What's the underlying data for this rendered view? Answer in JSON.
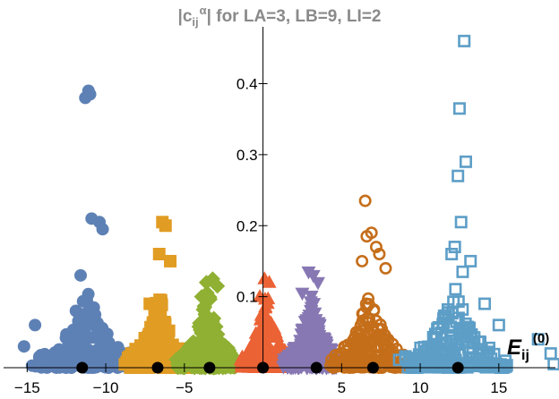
{
  "chart_data": {
    "type": "scatter",
    "title": {
      "prefix": "|c",
      "sub": "ij",
      "sup": "α",
      "suffix": "| for LA=3, LB=9, LI=2"
    },
    "xlabel": {
      "main": "E",
      "sub": "ij",
      "sup": "(0)"
    },
    "ylabel": "",
    "xlim": [
      -16.5,
      18.6
    ],
    "ylim": [
      0,
      0.48
    ],
    "x_ticks": [
      -15,
      -10,
      -5,
      0,
      5,
      10,
      15
    ],
    "x_tick_labels": [
      "−15",
      "−10",
      "−5",
      "",
      "5",
      "10",
      "15"
    ],
    "y_ticks": [
      0.1,
      0.2,
      0.3,
      0.4
    ],
    "y_tick_labels": [
      "0.1",
      "0.2",
      "0.3",
      "0.4"
    ],
    "legend": "none",
    "grid": false,
    "series": [
      {
        "name": "series-1",
        "marker": "circle-filled",
        "color": "#5e81b5",
        "center": -11.2,
        "spread": 3.3,
        "min_x": -15.6,
        "peaks": [
          [
            -11.3,
            0.38
          ],
          [
            -11.1,
            0.39
          ],
          [
            -11.0,
            0.385
          ],
          [
            -10.9,
            0.21
          ],
          [
            -10.4,
            0.205
          ],
          [
            -10.2,
            0.195
          ],
          [
            -11.6,
            0.13
          ],
          [
            -11.9,
            0.08
          ],
          [
            -14.5,
            0.06
          ],
          [
            -15.2,
            0.03
          ]
        ]
      },
      {
        "name": "series-2",
        "marker": "square-filled",
        "color": "#e19c24",
        "center": -6.6,
        "spread": 2.2,
        "min_x": -9.6,
        "peaks": [
          [
            -6.4,
            0.205
          ],
          [
            -6.2,
            0.2
          ],
          [
            -6.6,
            0.16
          ],
          [
            -5.9,
            0.15
          ],
          [
            -7.2,
            0.09
          ]
        ]
      },
      {
        "name": "series-3",
        "marker": "diamond-filled",
        "color": "#8fb032",
        "center": -3.5,
        "spread": 2.0,
        "min_x": -6.4,
        "peaks": [
          [
            -3.2,
            0.125
          ],
          [
            -3.6,
            0.12
          ],
          [
            -2.9,
            0.115
          ],
          [
            -3.9,
            0.1
          ]
        ]
      },
      {
        "name": "series-4",
        "marker": "triangle-up-filled",
        "color": "#eb6235",
        "center": 0.2,
        "spread": 1.7,
        "min_x": -3.0,
        "peaks": [
          [
            0.1,
            0.125
          ],
          [
            0.4,
            0.12
          ],
          [
            -0.2,
            0.1
          ]
        ]
      },
      {
        "name": "series-5",
        "marker": "triangle-down-filled",
        "color": "#8778b3",
        "center": 3.1,
        "spread": 1.8,
        "min_x": 0.8,
        "peaks": [
          [
            2.9,
            0.135
          ],
          [
            3.2,
            0.13
          ],
          [
            3.5,
            0.12
          ],
          [
            2.5,
            0.105
          ]
        ]
      },
      {
        "name": "series-6",
        "marker": "circle-open",
        "color": "#c56e1a",
        "center": 6.8,
        "spread": 2.6,
        "min_x": 2.0,
        "peaks": [
          [
            6.5,
            0.235
          ],
          [
            6.9,
            0.19
          ],
          [
            6.6,
            0.185
          ],
          [
            7.2,
            0.17
          ],
          [
            7.4,
            0.16
          ],
          [
            6.3,
            0.15
          ],
          [
            7.8,
            0.14
          ]
        ]
      },
      {
        "name": "series-7",
        "marker": "square-open",
        "color": "#5d9ec7",
        "center": 12.2,
        "spread": 3.4,
        "min_x": 8.6,
        "peaks": [
          [
            12.8,
            0.46
          ],
          [
            12.5,
            0.365
          ],
          [
            12.9,
            0.29
          ],
          [
            12.4,
            0.27
          ],
          [
            12.6,
            0.205
          ],
          [
            12.2,
            0.17
          ],
          [
            12.0,
            0.16
          ],
          [
            13.2,
            0.15
          ],
          [
            12.7,
            0.135
          ],
          [
            14.1,
            0.09
          ],
          [
            15.0,
            0.06
          ],
          [
            17.5,
            0.04
          ],
          [
            18.3,
            0.02
          ],
          [
            18.5,
            0.005
          ]
        ]
      }
    ],
    "reference_points": {
      "name": "unperturbed-energies",
      "color": "#000000",
      "y": 0,
      "x": [
        -11.5,
        -6.7,
        -3.4,
        0.0,
        3.4,
        7.0,
        12.4
      ]
    }
  }
}
